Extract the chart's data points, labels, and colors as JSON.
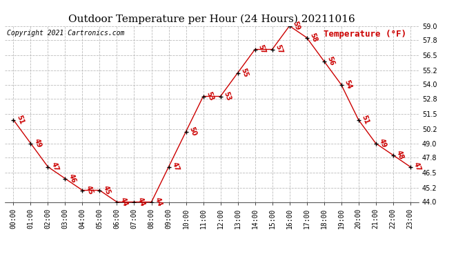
{
  "title": "Outdoor Temperature per Hour (24 Hours) 20211016",
  "copyright_text": "Copyright 2021 Cartronics.com",
  "legend_text": "Temperature (°F)",
  "hours": [
    "00:00",
    "01:00",
    "02:00",
    "03:00",
    "04:00",
    "05:00",
    "06:00",
    "07:00",
    "08:00",
    "09:00",
    "10:00",
    "11:00",
    "12:00",
    "13:00",
    "14:00",
    "15:00",
    "16:00",
    "17:00",
    "18:00",
    "19:00",
    "20:00",
    "21:00",
    "22:00",
    "23:00"
  ],
  "temps": [
    51,
    49,
    47,
    46,
    45,
    45,
    44,
    44,
    44,
    47,
    50,
    53,
    53,
    55,
    57,
    57,
    59,
    58,
    56,
    54,
    51,
    49,
    48,
    47
  ],
  "line_color": "#cc0000",
  "marker_color": "#000000",
  "label_color": "#cc0000",
  "title_color": "#000000",
  "copyright_color": "#000000",
  "legend_color": "#cc0000",
  "bg_color": "#ffffff",
  "grid_color": "#bbbbbb",
  "ylim_min": 44.0,
  "ylim_max": 59.0,
  "yticks": [
    44.0,
    45.2,
    46.5,
    47.8,
    49.0,
    50.2,
    51.5,
    52.8,
    54.0,
    55.2,
    56.5,
    57.8,
    59.0
  ],
  "title_fontsize": 11,
  "copyright_fontsize": 7,
  "legend_fontsize": 9,
  "label_fontsize": 7,
  "tick_fontsize": 7,
  "ytick_fontsize": 7
}
